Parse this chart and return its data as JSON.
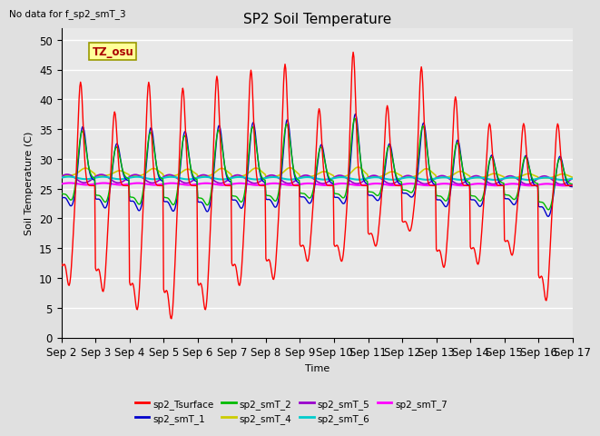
{
  "title": "SP2 Soil Temperature",
  "xlabel": "Time",
  "ylabel": "Soil Temperature (C)",
  "note": "No data for f_sp2_smT_3",
  "tz_label": "TZ_osu",
  "ylim": [
    0,
    52
  ],
  "yticks": [
    0,
    5,
    10,
    15,
    20,
    25,
    30,
    35,
    40,
    45,
    50
  ],
  "x_tick_labels": [
    "Sep 2",
    "Sep 3",
    "Sep 4",
    "Sep 5",
    "Sep 6",
    "Sep 7",
    "Sep 8",
    "Sep 9",
    "Sep 10",
    "Sep 11",
    "Sep 12",
    "Sep 13",
    "Sep 14",
    "Sep 15",
    "Sep 16",
    "Sep 17"
  ],
  "background_color": "#e0e0e0",
  "plot_bg_color": "#e8e8e8",
  "grid_color": "#ffffff",
  "series": [
    {
      "name": "sp2_Tsurface",
      "color": "#ff0000"
    },
    {
      "name": "sp2_smT_1",
      "color": "#0000cc"
    },
    {
      "name": "sp2_smT_2",
      "color": "#00bb00"
    },
    {
      "name": "sp2_smT_4",
      "color": "#cccc00"
    },
    {
      "name": "sp2_smT_5",
      "color": "#9900cc"
    },
    {
      "name": "sp2_smT_6",
      "color": "#00cccc"
    },
    {
      "name": "sp2_smT_7",
      "color": "#ff00ff"
    }
  ]
}
